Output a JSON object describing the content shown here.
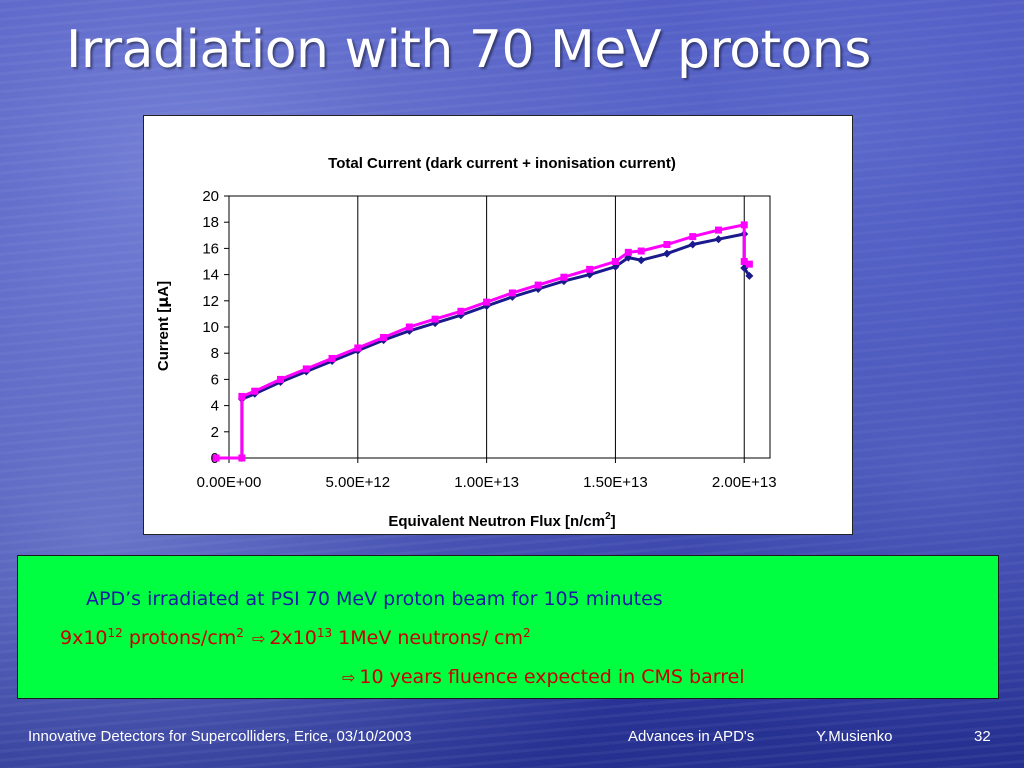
{
  "slide": {
    "title": "Irradiation with 70 MeV protons"
  },
  "chart_data": {
    "type": "line",
    "title": "Total Current (dark current + inonisation current)",
    "xlabel_main": "Equivalent Neutron Flux [n/cm",
    "xlabel_sup": "2",
    "xlabel_end": "]",
    "ylabel_main": "Current [",
    "ylabel_mu": "μ",
    "ylabel_end": "A]",
    "xlim": [
      0,
      21000000000000.0
    ],
    "ylim": [
      0,
      20
    ],
    "y_ticks": [
      "0",
      "2",
      "4",
      "6",
      "8",
      "10",
      "12",
      "14",
      "16",
      "18",
      "20"
    ],
    "x_ticks": [
      "0.00E+00",
      "5.00E+12",
      "1.00E+13",
      "1.50E+13",
      "2.00E+13"
    ],
    "x_tick_values": [
      0,
      5000000000000.0,
      10000000000000.0,
      15000000000000.0,
      20000000000000.0
    ],
    "grid": "vertical",
    "legend": "none",
    "series": [
      {
        "color": "#1a1a8c",
        "marker": "diamond",
        "x": [
          -500000000000.0,
          500000000000.0,
          500000000000.0,
          1000000000000.0,
          2000000000000.0,
          3000000000000.0,
          4000000000000.0,
          5000000000000.0,
          6000000000000.0,
          7000000000000.0,
          8000000000000.0,
          9000000000000.0,
          10000000000000.0,
          11000000000000.0,
          12000000000000.0,
          13000000000000.0,
          14000000000000.0,
          15000000000000.0,
          15500000000000.0,
          16000000000000.0,
          17000000000000.0,
          18000000000000.0,
          19000000000000.0,
          20000000000000.0,
          20000000000000.0,
          20200000000000.0
        ],
        "y": [
          0,
          0,
          4.5,
          4.9,
          5.8,
          6.6,
          7.4,
          8.2,
          9.0,
          9.7,
          10.3,
          10.9,
          11.6,
          12.3,
          12.9,
          13.5,
          14.0,
          14.6,
          15.3,
          15.1,
          15.6,
          16.3,
          16.7,
          17.1,
          14.5,
          13.9
        ]
      },
      {
        "color": "#ff00ff",
        "marker": "square",
        "x": [
          -500000000000.0,
          500000000000.0,
          500000000000.0,
          1000000000000.0,
          2000000000000.0,
          3000000000000.0,
          4000000000000.0,
          5000000000000.0,
          6000000000000.0,
          7000000000000.0,
          8000000000000.0,
          9000000000000.0,
          10000000000000.0,
          11000000000000.0,
          12000000000000.0,
          13000000000000.0,
          14000000000000.0,
          15000000000000.0,
          15500000000000.0,
          16000000000000.0,
          17000000000000.0,
          18000000000000.0,
          19000000000000.0,
          20000000000000.0,
          20000000000000.0,
          20200000000000.0
        ],
        "y": [
          0,
          0,
          4.7,
          5.1,
          6.0,
          6.8,
          7.6,
          8.4,
          9.2,
          10.0,
          10.6,
          11.2,
          11.9,
          12.6,
          13.2,
          13.8,
          14.4,
          15.0,
          15.7,
          15.8,
          16.3,
          16.9,
          17.4,
          17.8,
          15.0,
          14.8
        ]
      }
    ]
  },
  "info": {
    "line1": "APD’s irradiated at PSI 70 MeV proton beam for 105 minutes",
    "line2_a": "9x10",
    "line2_a_sup": "12",
    "line2_b": " protons/cm",
    "line2_b_sup": "2",
    "arrow": "⇨",
    "line2_c": "2x10",
    "line2_c_sup": "13",
    "line2_d": " 1MeV neutrons/ cm",
    "line2_d_sup": "2",
    "line3": "10 years fluence expected in CMS barrel"
  },
  "footer": {
    "event": "Innovative Detectors for Supercolliders, Erice, 03/10/2003",
    "talk": "Advances in APD's",
    "author": "Y.Musienko",
    "page": "32"
  }
}
